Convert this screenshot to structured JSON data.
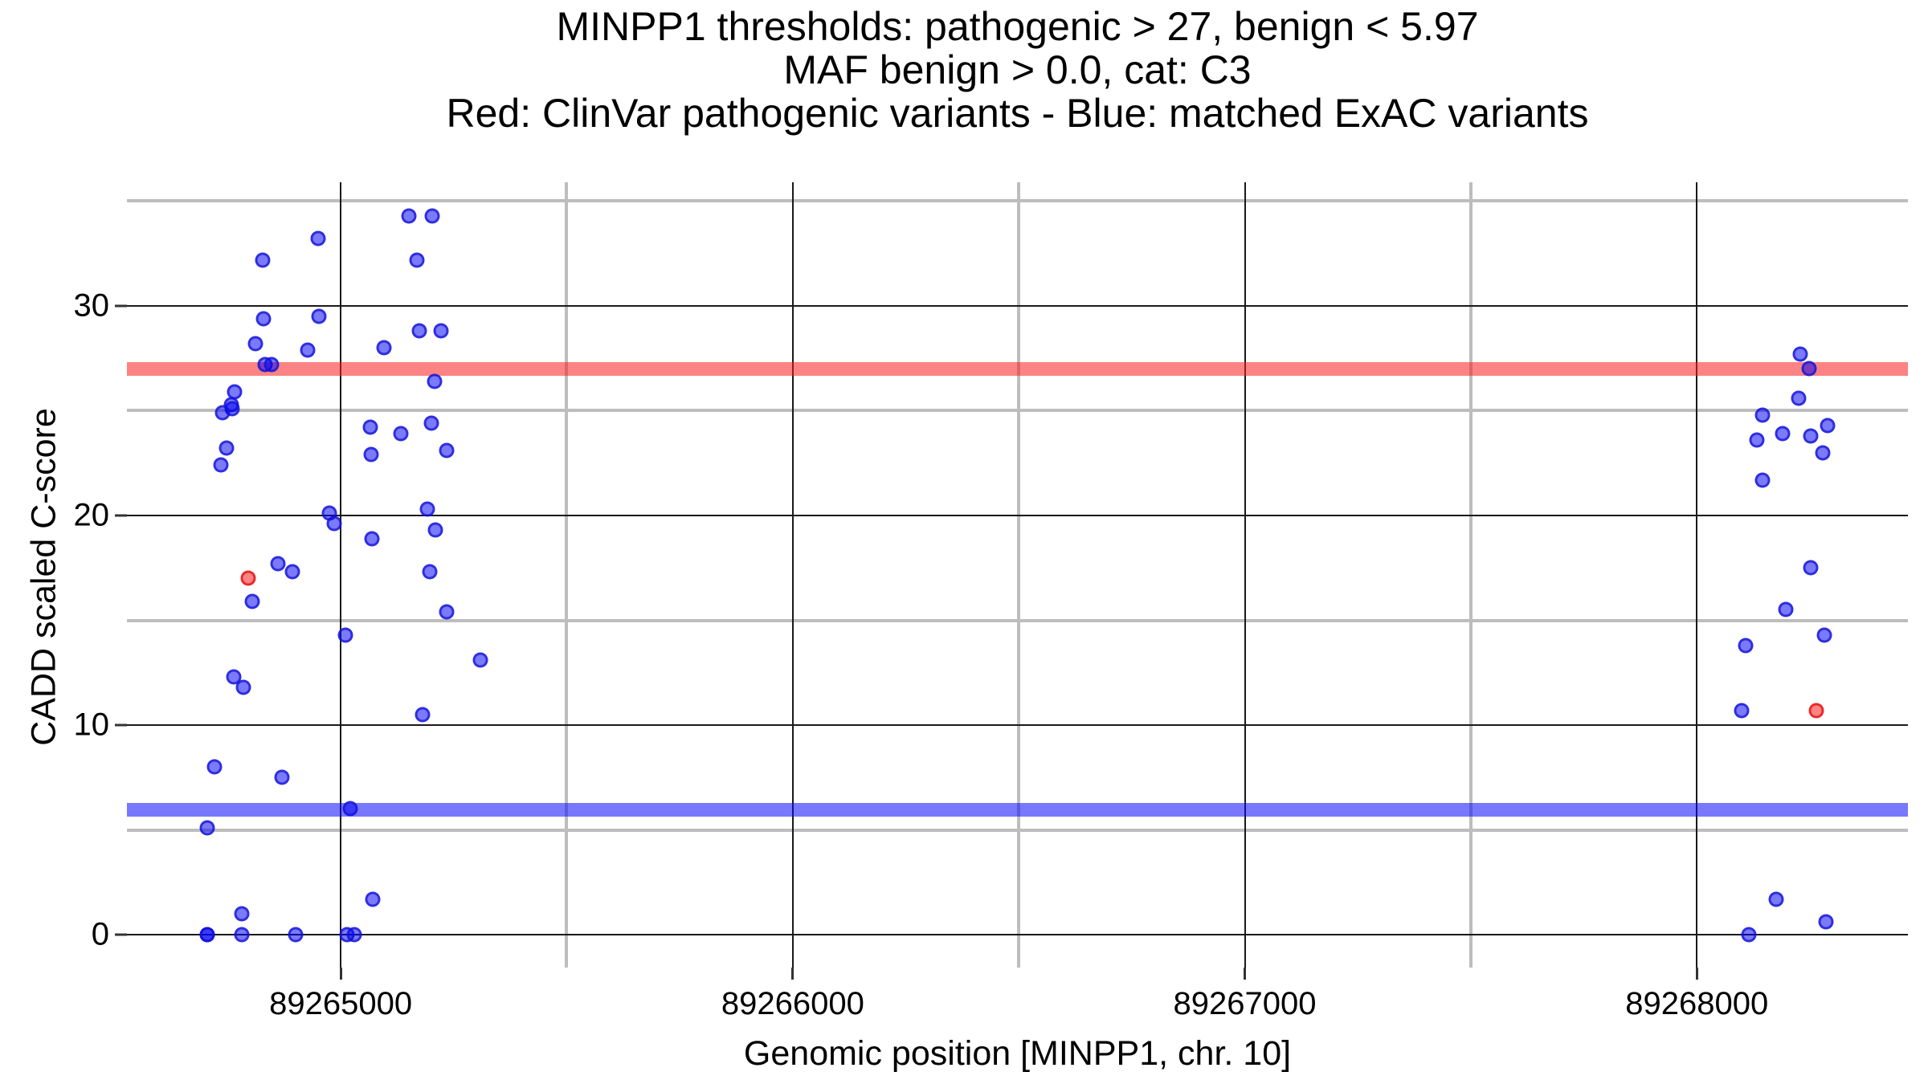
{
  "title": {
    "line1": "MINPP1 thresholds: pathogenic > 27, benign < 5.97",
    "line2": "MAF benign > 0.0, cat: C3",
    "line3": "Red: ClinVar pathogenic variants - Blue: matched ExAC variants"
  },
  "axes": {
    "x": {
      "title": "Genomic position [MINPP1, chr. 10]",
      "tick_labels": [
        "89265000",
        "89266000",
        "89267000",
        "89268000"
      ],
      "tick_values": [
        89265000,
        89266000,
        89267000,
        89268000
      ],
      "minor_values": [
        89265500,
        89266500,
        89267500,
        89268500
      ]
    },
    "y": {
      "title": "CADD scaled C-score",
      "tick_labels": [
        "0",
        "10",
        "20",
        "30"
      ],
      "tick_values": [
        0,
        10,
        20,
        30
      ],
      "minor_values": [
        5,
        15,
        25,
        35
      ]
    }
  },
  "thresholds": {
    "pathogenic_value": 27,
    "benign_value": 5.97,
    "pathogenic_color": "rgba(250,30,30,0.55)",
    "benign_color": "rgba(10,10,250,0.55)"
  },
  "colors": {
    "blue_fill": "rgba(0,0,245,0.52)",
    "blue_stroke": "rgba(20,20,215,0.75)",
    "red_fill": "rgba(250,10,10,0.5)",
    "red_stroke": "rgba(230,20,20,0.8)",
    "grid_major": "#1a1a1a",
    "grid_minor": "#bdbdbd"
  },
  "chart_data": {
    "type": "scatter",
    "title": "MINPP1 thresholds: pathogenic > 27, benign < 5.97 | MAF benign > 0.0, cat: C3",
    "xlabel": "Genomic position [MINPP1, chr. 10]",
    "ylabel": "CADD scaled C-score",
    "x_domain": [
      89264527,
      89268467
    ],
    "y_domain": [
      -1.57,
      35.9
    ],
    "grid": "on",
    "legend_position": "none",
    "hlines": [
      {
        "y": 27,
        "color": "red",
        "meaning": "pathogenic threshold"
      },
      {
        "y": 5.97,
        "color": "blue",
        "meaning": "benign threshold"
      }
    ],
    "series": [
      {
        "name": "ClinVar pathogenic variants",
        "color": "red",
        "points": [
          [
            89264796,
            17.0
          ],
          [
            89268265,
            10.7
          ]
        ]
      },
      {
        "name": "matched ExAC variants",
        "color": "blue",
        "points": [
          [
            89264950,
            33.2
          ],
          [
            89264828,
            32.2
          ],
          [
            89265151,
            34.3
          ],
          [
            89265203,
            34.3
          ],
          [
            89265169,
            32.2
          ],
          [
            89264829,
            29.4
          ],
          [
            89264952,
            29.5
          ],
          [
            89264812,
            28.2
          ],
          [
            89264927,
            27.9
          ],
          [
            89265174,
            28.8
          ],
          [
            89265222,
            28.8
          ],
          [
            89265096,
            28.0
          ],
          [
            89264833,
            27.2
          ],
          [
            89264847,
            27.2
          ],
          [
            89265208,
            26.4
          ],
          [
            89264765,
            25.9
          ],
          [
            89264758,
            25.3
          ],
          [
            89264760,
            25.1
          ],
          [
            89264739,
            24.9
          ],
          [
            89265066,
            24.2
          ],
          [
            89265201,
            24.4
          ],
          [
            89265133,
            23.9
          ],
          [
            89264748,
            23.2
          ],
          [
            89265235,
            23.1
          ],
          [
            89265068,
            22.9
          ],
          [
            89264735,
            22.4
          ],
          [
            89264975,
            20.1
          ],
          [
            89264986,
            19.6
          ],
          [
            89265192,
            20.3
          ],
          [
            89265210,
            19.3
          ],
          [
            89265069,
            18.9
          ],
          [
            89264861,
            17.7
          ],
          [
            89264893,
            17.3
          ],
          [
            89265197,
            17.3
          ],
          [
            89264805,
            15.9
          ],
          [
            89265235,
            15.4
          ],
          [
            89265011,
            14.3
          ],
          [
            89265309,
            13.1
          ],
          [
            89264764,
            12.3
          ],
          [
            89264785,
            11.8
          ],
          [
            89265181,
            10.5
          ],
          [
            89264721,
            8.0
          ],
          [
            89264870,
            7.5
          ],
          [
            89265021,
            6.0
          ],
          [
            89264705,
            5.1
          ],
          [
            89265071,
            1.7
          ],
          [
            89264781,
            1.0
          ],
          [
            89264705,
            0
          ],
          [
            89264705,
            0
          ],
          [
            89264781,
            0
          ],
          [
            89264900,
            0
          ],
          [
            89265014,
            0
          ],
          [
            89265030,
            0
          ],
          [
            89268229,
            27.7
          ],
          [
            89268249,
            27.0
          ],
          [
            89268226,
            25.6
          ],
          [
            89268146,
            24.8
          ],
          [
            89268290,
            24.3
          ],
          [
            89268190,
            23.9
          ],
          [
            89268252,
            23.8
          ],
          [
            89268133,
            23.6
          ],
          [
            89268279,
            23.0
          ],
          [
            89268146,
            21.7
          ],
          [
            89268252,
            17.5
          ],
          [
            89268197,
            15.5
          ],
          [
            89268283,
            14.3
          ],
          [
            89268108,
            13.8
          ],
          [
            89268099,
            10.7
          ],
          [
            89268176,
            1.7
          ],
          [
            89268286,
            0.6
          ],
          [
            89268115,
            0
          ]
        ]
      }
    ]
  }
}
